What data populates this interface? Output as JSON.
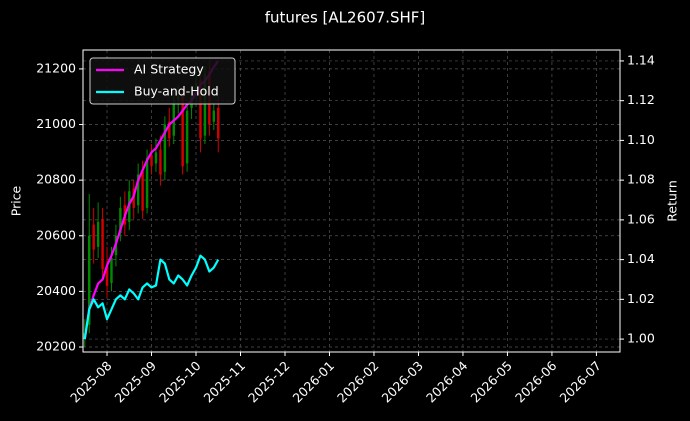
{
  "chart_data": {
    "type": "candlestick",
    "title": "futures [AL2607.SHF]",
    "y_label": "Price",
    "y2_label": "Return",
    "x": [
      -0.5,
      -0.4,
      -0.3,
      -0.2,
      -0.1,
      0,
      0.1,
      0.2,
      0.3,
      0.4,
      0.5,
      0.6,
      0.7,
      0.8,
      0.9,
      1,
      1.1,
      1.2,
      1.3,
      1.4,
      1.5,
      1.6,
      1.7,
      1.8,
      1.9,
      2,
      2.1,
      2.2,
      2.3,
      2.4,
      2.5
    ],
    "open": [
      20230,
      20280,
      20640,
      20560,
      20660,
      20490,
      20430,
      20530,
      20610,
      20710,
      20650,
      20770,
      20710,
      20830,
      20700,
      20890,
      20860,
      20910,
      20830,
      21010,
      20960,
      21090,
      21110,
      20860,
      21060,
      21110,
      21160,
      20960,
      21190,
      21010,
      21060
    ],
    "high": [
      20300,
      20750,
      20700,
      20720,
      20700,
      20560,
      20560,
      20640,
      20740,
      20760,
      20800,
      20800,
      20860,
      20870,
      20910,
      20930,
      20950,
      20960,
      21030,
      21060,
      21120,
      21140,
      21130,
      21080,
      21140,
      21190,
      21200,
      21210,
      21230,
      21080,
      21100
    ],
    "low": [
      20200,
      20250,
      20500,
      20520,
      20450,
      20380,
      20400,
      20490,
      20580,
      20600,
      20620,
      20660,
      20680,
      20660,
      20680,
      20820,
      20830,
      20780,
      20800,
      20920,
      20930,
      21040,
      20820,
      20830,
      21020,
      21080,
      20900,
      20930,
      20960,
      20980,
      20900
    ],
    "close": [
      20250,
      20600,
      20550,
      20650,
      20480,
      20420,
      20520,
      20600,
      20700,
      20640,
      20760,
      20700,
      20820,
      20690,
      20880,
      20850,
      20900,
      20820,
      21000,
      20950,
      21080,
      21100,
      20850,
      21050,
      21100,
      21150,
      20950,
      21180,
      21000,
      21050,
      20950
    ],
    "up_color": "#008a00",
    "down_color": "#d40000",
    "series": [
      {
        "name": "AI Strategy",
        "color": "#ff00ff",
        "axis": "y2",
        "values": [
          1.0,
          1.015,
          1.022,
          1.028,
          1.03,
          1.037,
          1.042,
          1.048,
          1.055,
          1.062,
          1.068,
          1.072,
          1.08,
          1.085,
          1.09,
          1.094,
          1.096,
          1.1,
          1.104,
          1.108,
          1.11,
          1.112,
          1.115,
          1.118,
          1.12,
          1.124,
          1.128,
          1.13,
          1.133,
          1.137,
          1.14
        ]
      },
      {
        "name": "Buy-and-Hold",
        "color": "#00ffff",
        "axis": "y2",
        "values": [
          1.0,
          1.015,
          1.02,
          1.016,
          1.018,
          1.01,
          1.015,
          1.02,
          1.022,
          1.02,
          1.025,
          1.023,
          1.02,
          1.026,
          1.028,
          1.026,
          1.027,
          1.04,
          1.038,
          1.03,
          1.028,
          1.032,
          1.03,
          1.027,
          1.032,
          1.036,
          1.042,
          1.04,
          1.034,
          1.036,
          1.04
        ]
      }
    ],
    "xlim": [
      -0.54,
      11.53
    ],
    "xticks": [
      {
        "value": 0,
        "label": "2025-08"
      },
      {
        "value": 1,
        "label": "2025-09"
      },
      {
        "value": 2,
        "label": "2025-10"
      },
      {
        "value": 3,
        "label": "2025-11"
      },
      {
        "value": 4,
        "label": "2025-12"
      },
      {
        "value": 5,
        "label": "2026-01"
      },
      {
        "value": 6,
        "label": "2026-02"
      },
      {
        "value": 7,
        "label": "2026-03"
      },
      {
        "value": 8,
        "label": "2026-04"
      },
      {
        "value": 9,
        "label": "2026-05"
      },
      {
        "value": 10,
        "label": "2026-06"
      },
      {
        "value": 11,
        "label": "2026-07"
      }
    ],
    "ylim": [
      20182,
      21268
    ],
    "yticks": [
      20200,
      20400,
      20600,
      20800,
      21000,
      21200
    ],
    "y2lim": [
      0.9935,
      1.1455
    ],
    "y2ticks": [
      {
        "value": 1.0,
        "label": "1.00"
      },
      {
        "value": 1.02,
        "label": "1.02"
      },
      {
        "value": 1.04,
        "label": "1.04"
      },
      {
        "value": 1.06,
        "label": "1.06"
      },
      {
        "value": 1.08,
        "label": "1.08"
      },
      {
        "value": 1.1,
        "label": "1.10"
      },
      {
        "value": 1.12,
        "label": "1.12"
      },
      {
        "value": 1.14,
        "label": "1.14"
      }
    ],
    "grid": true,
    "legend": "upper-left"
  }
}
